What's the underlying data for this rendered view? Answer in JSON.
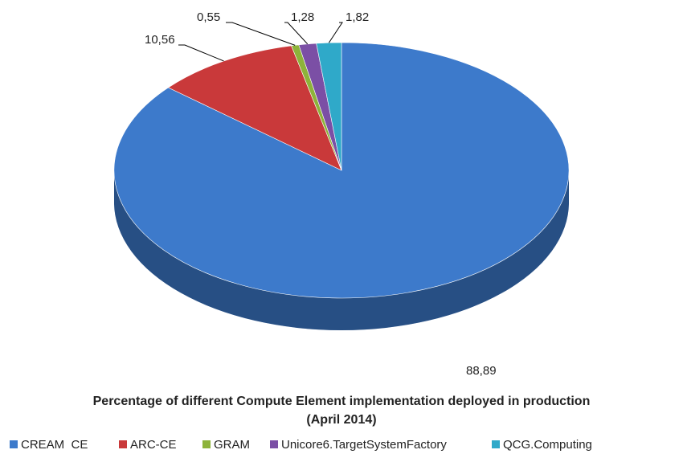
{
  "chart_data": {
    "type": "pie3d",
    "title": "Percentage of different Compute Element implementation deployed in production",
    "subtitle": "(April 2014)",
    "categories": [
      "CREAM  CE",
      "ARC-CE",
      "GRAM",
      "Unicore6.TargetSystemFactory",
      "QCG.Computing"
    ],
    "values": [
      88.89,
      10.56,
      0.55,
      1.28,
      1.82
    ],
    "value_labels": [
      "88,89",
      "10,56",
      "0,55",
      "1,28",
      "1,82"
    ],
    "colors": [
      "#3d7acb",
      "#c9393a",
      "#8db33a",
      "#7b4fa5",
      "#2fa9c9"
    ],
    "legend": "bottom"
  }
}
